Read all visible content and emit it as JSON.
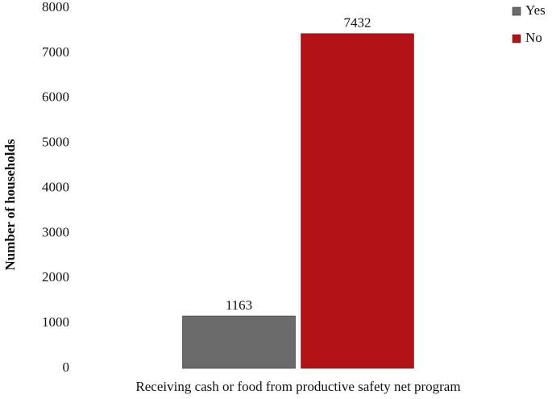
{
  "chart_data": {
    "type": "bar",
    "categories": [
      "Receiving cash or food from productive safety net program"
    ],
    "series": [
      {
        "name": "Yes",
        "color": "#6b6b6b",
        "values": [
          1163
        ]
      },
      {
        "name": "No",
        "color": "#b31217",
        "values": [
          7432
        ]
      }
    ],
    "y_label": "Number of households",
    "ylim": [
      0,
      8000
    ],
    "yticks": [
      0,
      1000,
      2000,
      3000,
      4000,
      5000,
      6000,
      7000,
      8000
    ],
    "grid": false,
    "legend": "top-right"
  }
}
